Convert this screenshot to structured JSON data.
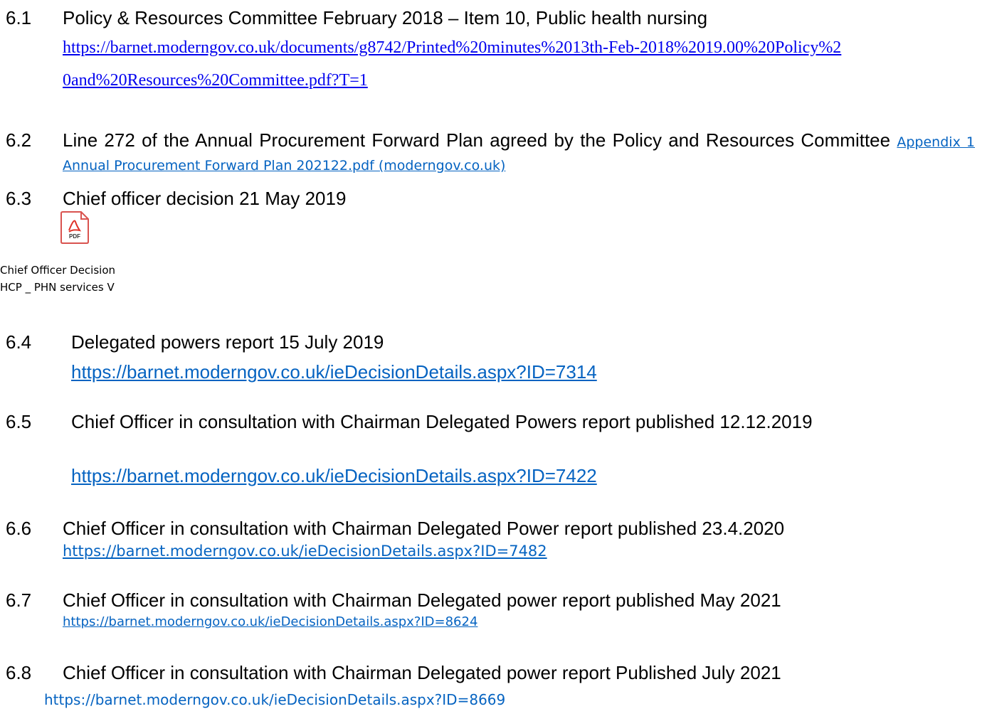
{
  "items": [
    {
      "number": "6.1",
      "text": "Policy & Resources Committee February 2018 – Item 10, Public health nursing",
      "link": "https://barnet.moderngov.co.uk/documents/g8742/Printed%20minutes%2013th-Feb-2018%2019.00%20Policy%20and%20Resources%20Committee.pdf?T=1"
    },
    {
      "number": "6.2",
      "text": "Line 272 of the Annual Procurement Forward Plan agreed by the Policy and Resources Committee",
      "link": "Appendix 1 Annual Procurement Forward Plan 202122.pdf (moderngov.co.uk)"
    },
    {
      "number": "6.3",
      "text": "Chief officer decision 21 May 2019",
      "icon_label": "PDF",
      "caption": [
        "Chief Officer Decision",
        "HCP _ PHN services V"
      ]
    },
    {
      "number": "6.4",
      "text": "Delegated powers report 15 July 2019",
      "link": "https://barnet.moderngov.co.uk/ieDecisionDetails.aspx?ID=7314"
    },
    {
      "number": "6.5",
      "text": "Chief Officer in consultation with Chairman Delegated Powers report published 12.12.2019",
      "link": "https://barnet.moderngov.co.uk/ieDecisionDetails.aspx?ID=7422"
    },
    {
      "number": "6.6",
      "text": "Chief Officer in consultation with Chairman Delegated Power report published 23.4.2020",
      "link": "https://barnet.moderngov.co.uk/ieDecisionDetails.aspx?ID=7482"
    },
    {
      "number": "6.7",
      "text": "Chief Officer in consultation with Chairman Delegated power report published May 2021",
      "link": "https://barnet.moderngov.co.uk/ieDecisionDetails.aspx?ID=8624"
    },
    {
      "number": "6.8",
      "text": "Chief Officer in consultation with Chairman Delegated power report Published July 2021",
      "link": "https://barnet.moderngov.co.uk/ieDecisionDetails.aspx?ID=8669"
    }
  ]
}
